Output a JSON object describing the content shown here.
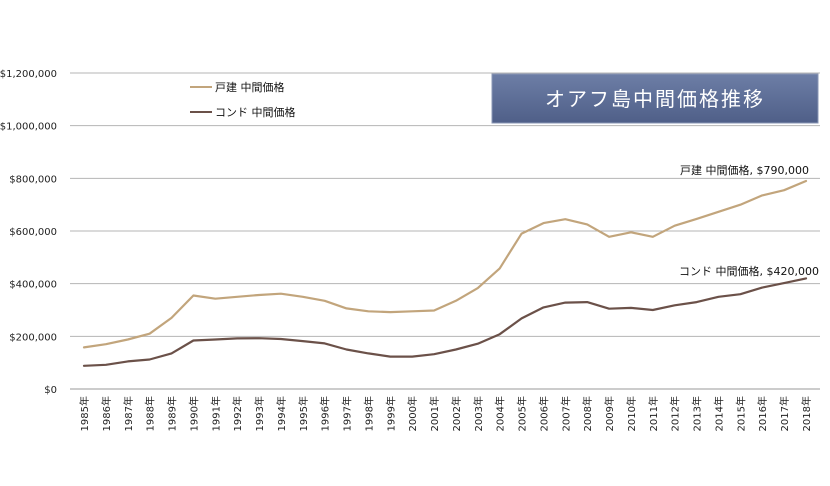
{
  "chart_data": {
    "type": "line",
    "title": "オアフ島中間価格推移",
    "xlabel": "",
    "ylabel": "",
    "ylim": [
      0,
      1200000
    ],
    "y_ticks": [
      0,
      200000,
      400000,
      600000,
      800000,
      1000000,
      1200000
    ],
    "y_tick_labels": [
      "$0",
      "$200,000",
      "$400,000",
      "$600,000",
      "$800,000",
      "$1,000,000",
      "$1,200,000"
    ],
    "grid": true,
    "legend_position": "top-left",
    "categories": [
      "1985年",
      "1986年",
      "1987年",
      "1988年",
      "1989年",
      "1990年",
      "1991年",
      "1992年",
      "1993年",
      "1994年",
      "1995年",
      "1996年",
      "1997年",
      "1998年",
      "1999年",
      "2000年",
      "2001年",
      "2002年",
      "2003年",
      "2004年",
      "2005年",
      "2006年",
      "2007年",
      "2008年",
      "2009年",
      "2010年",
      "2011年",
      "2012年",
      "2013年",
      "2014年",
      "2015年",
      "2016年",
      "2017年",
      "2018年"
    ],
    "series": [
      {
        "name": "戸建 中間価格",
        "color": "#c2a57c",
        "values": [
          158000,
          170000,
          188000,
          210000,
          270000,
          355000,
          343000,
          350000,
          357000,
          362000,
          350000,
          335000,
          306000,
          295000,
          292000,
          295000,
          298000,
          335000,
          383000,
          458000,
          590000,
          630000,
          645000,
          625000,
          578000,
          595000,
          578000,
          620000,
          646000,
          673000,
          700000,
          735000,
          755000,
          790000
        ],
        "end_label": "戸建 中間価格, $790,000"
      },
      {
        "name": "コンド 中間価格",
        "color": "#6b5149",
        "values": [
          88000,
          92000,
          105000,
          112000,
          135000,
          184000,
          188000,
          192000,
          193000,
          190000,
          182000,
          173000,
          150000,
          135000,
          123000,
          123000,
          132000,
          150000,
          172000,
          208000,
          268000,
          310000,
          328000,
          330000,
          305000,
          308000,
          300000,
          318000,
          330000,
          350000,
          360000,
          385000,
          402000,
          420000
        ],
        "end_label": "コンド 中間価格, $420,000"
      }
    ]
  }
}
